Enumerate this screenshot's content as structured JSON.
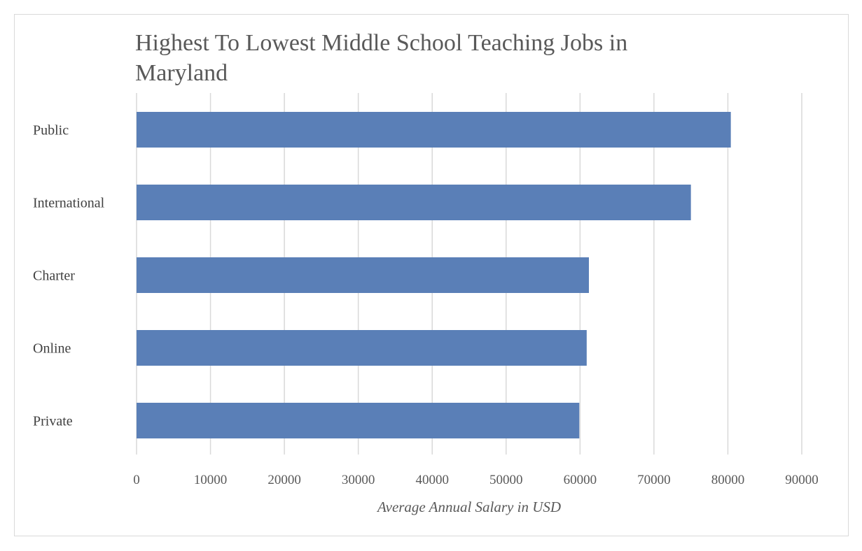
{
  "chart_data": {
    "type": "bar",
    "orientation": "horizontal",
    "title": "Highest To Lowest Middle  School Teaching Jobs in Maryland",
    "title_lines": [
      "Highest To Lowest Middle  School Teaching Jobs in",
      "Maryland"
    ],
    "categories": [
      "Public",
      "International",
      "Charter",
      "Online",
      "Private"
    ],
    "values": [
      80400,
      75000,
      61200,
      60900,
      59900
    ],
    "xlabel": "Average Annual Salary in USD",
    "ylabel": "",
    "xlim": [
      0,
      90000
    ],
    "xticks": [
      "0",
      "10000",
      "20000",
      "30000",
      "40000",
      "50000",
      "60000",
      "70000",
      "80000",
      "90000"
    ],
    "grid": "vertical",
    "legend": "none",
    "bar_color": "#5a7fb7",
    "grid_color": "#d9d9d9"
  }
}
